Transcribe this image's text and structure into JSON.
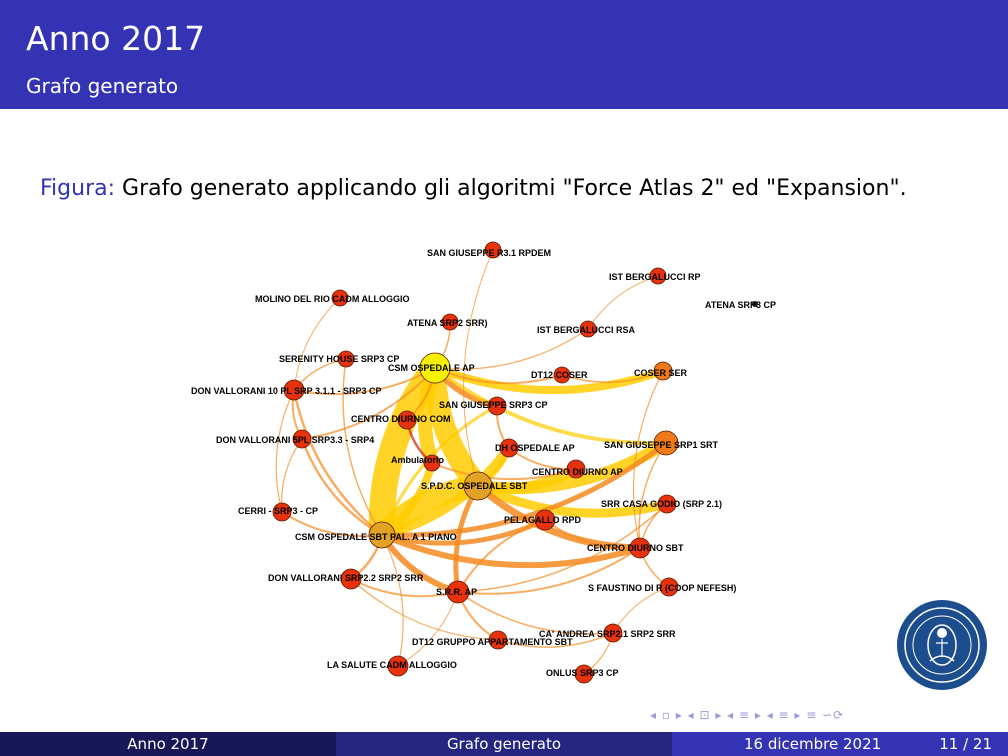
{
  "header": {
    "title": "Anno 2017",
    "subtitle": "Grafo generato"
  },
  "figure": {
    "caption_label": "Figura:",
    "caption_text": "Grafo generato applicando gli algoritmi \"Force Atlas 2\" ed \"Expansion\".",
    "nodes": [
      "SAN GIUSEPPE R3.1 RPDEM",
      "IST BERGALUCCI RP",
      "ATENA SRP3 CP",
      "MOLINO DEL RIO CADM ALLOGGIO",
      "ATENA SRP2 SRR)",
      "IST BERGALUCCI RSA",
      "SERENITY HOUSE SRP3 CP",
      "CSM OSPEDALE AP",
      "DT12 COSER",
      "COSER SER",
      "DON VALLORANI 10 PL SRP 3.1.1 - SRP3 CP",
      "SAN GIUSEPPE SRP3 CP",
      "CENTRO DIURNO COM",
      "DON VALLORANI 5PL SRP3.3 - SRP4",
      "DH OSPEDALE AP",
      "SAN GIUSEPPE SRP1 SRT",
      "Ambulatorio",
      "CENTRO DIURNO AP",
      "S.P.D.C. OSPEDALE SBT",
      "SRR CASA GODIO (SRP 2.1)",
      "CERRI - SRP3 - CP",
      "PELAGALLO RPD",
      "CSM OSPEDALE SBT PAL. A 1 PIANO",
      "CENTRO DIURNO SBT",
      "DON VALLORANI SRP2.2 SRP2 SRR",
      "S.R.R. AP",
      "S FAUSTINO DI R (COOP NEFESH)",
      "CA' ANDREA SRP2.1 SRP2 SRR",
      "DT12 GRUPPO APPARTAMENTO SBT",
      "LA SALUTE CADM ALLOGGIO",
      "ONLUS SRP3 CP"
    ]
  },
  "navigation": {
    "symbols": "◂ ▫ ▸  ◂ ⊡ ▸  ◂ ≡ ▸  ◂ ≡ ▸    ≡    ∽⟳"
  },
  "footer": {
    "left": "Anno 2017",
    "center": "Grafo generato",
    "date": "16 dicembre 2021",
    "page": "11 / 21"
  },
  "colors": {
    "header": "#3333b3",
    "node": "#e8320e",
    "hub": "#f4f000",
    "edge_main": "#ffcc00",
    "edge_orange": "#f58a1f"
  }
}
